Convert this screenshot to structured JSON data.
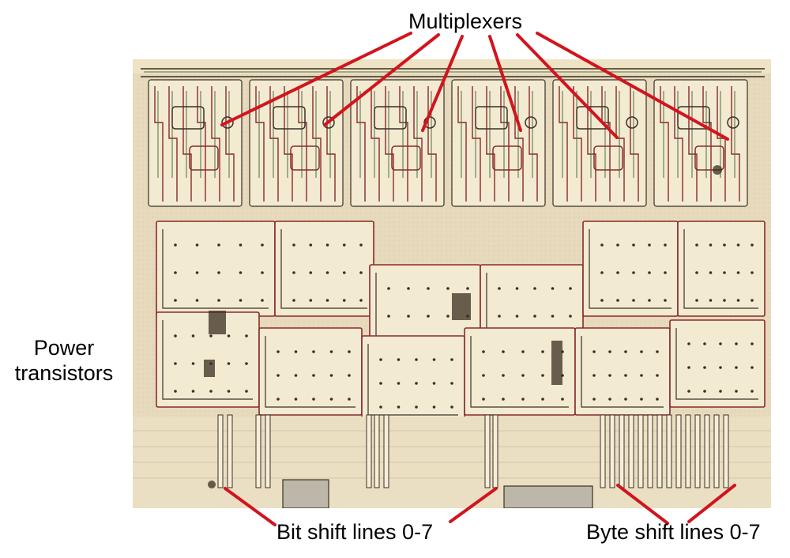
{
  "labels": {
    "multiplexers": "Multiplexers",
    "power_line1": "Power",
    "power_line2": "transistors",
    "bit_shift": "Bit shift lines 0-7",
    "byte_shift": "Byte shift lines 0-7"
  },
  "colors": {
    "die_background": "#e9dcc0",
    "metal": "#f3ead2",
    "trace_red": "#8a2a2a",
    "trace_green": "#4f6f3c",
    "trace_dark": "#3a3025",
    "callout_line": "#d2141e"
  }
}
